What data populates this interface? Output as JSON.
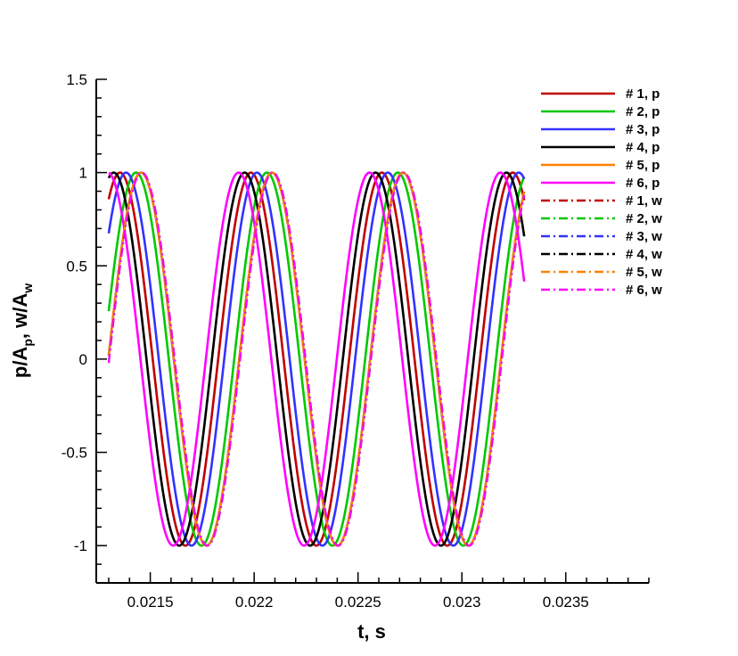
{
  "chart_data": {
    "type": "line",
    "xlabel": "t, s",
    "ylabel": {
      "p": "p/A",
      "p_sub": "p",
      "sep": ", w/A",
      "w_sub": "w"
    },
    "xlim": [
      0.02124,
      0.0239
    ],
    "ylim": [
      -1.2,
      1.5
    ],
    "x_ticks": [
      0.0215,
      0.022,
      0.0225,
      0.023,
      0.0235
    ],
    "x_tick_labels": [
      "0.0215",
      "0.022",
      "0.0225",
      "0.023",
      "0.0235"
    ],
    "y_ticks": [
      -1,
      -0.5,
      0,
      0.5,
      1,
      1.5
    ],
    "y_tick_labels": [
      "-1",
      "-0.5",
      "0",
      "0.5",
      "1",
      "1.5"
    ],
    "grid": false,
    "legend_position": "top-right",
    "t_range": [
      0.0213,
      0.0233
    ],
    "frequency_hz": 1587,
    "series": [
      {
        "name": "# 1, p",
        "color": "#c00000",
        "style": "solid",
        "phase_rad": 1.03
      },
      {
        "name": "# 2, p",
        "color": "#00c800",
        "style": "solid",
        "phase_rad": 0.26
      },
      {
        "name": "# 3, p",
        "color": "#3232ff",
        "style": "solid",
        "phase_rad": 0.74
      },
      {
        "name": "# 4, p",
        "color": "#000000",
        "style": "solid",
        "phase_rad": 1.33
      },
      {
        "name": "# 5, p",
        "color": "#ff8000",
        "style": "solid",
        "phase_rad": 0.02
      },
      {
        "name": "# 6, p",
        "color": "#ff00ff",
        "style": "solid",
        "phase_rad": 1.62
      },
      {
        "name": "# 1, w",
        "color": "#c00000",
        "style": "dashdot",
        "phase_rad": 0.02
      },
      {
        "name": "# 2, w",
        "color": "#00c800",
        "style": "dashdot",
        "phase_rad": 0.02
      },
      {
        "name": "# 3, w",
        "color": "#3232ff",
        "style": "dashdot",
        "phase_rad": 0.02
      },
      {
        "name": "# 4, w",
        "color": "#000000",
        "style": "dashdot",
        "phase_rad": -0.02
      },
      {
        "name": "# 5, w",
        "color": "#ff8000",
        "style": "dashdot",
        "phase_rad": 0.02
      },
      {
        "name": "# 6, w",
        "color": "#ff00ff",
        "style": "dashdot",
        "phase_rad": -0.02
      }
    ]
  }
}
